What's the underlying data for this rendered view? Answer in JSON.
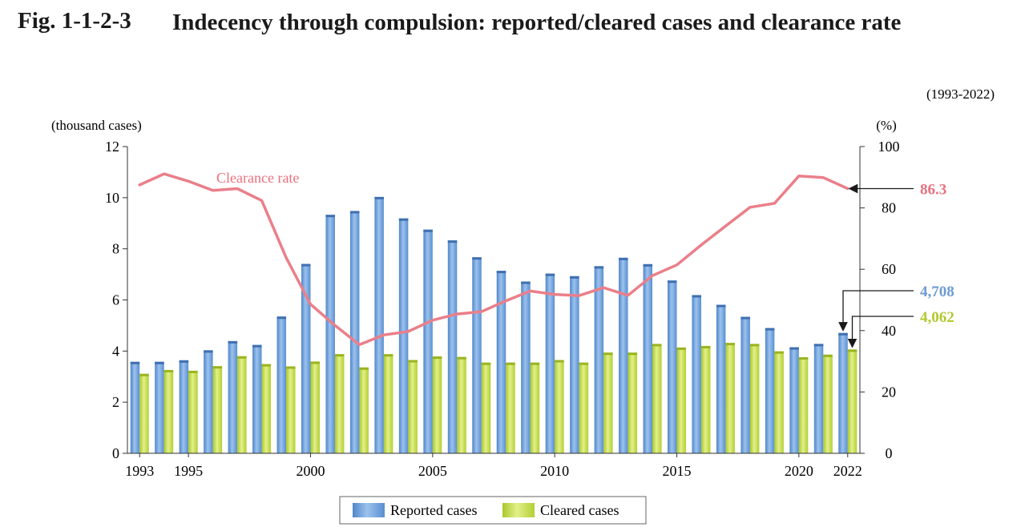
{
  "figure": {
    "number": "Fig. 1-1-2-3",
    "title": "Indecency through compulsion: reported/cleared cases and clearance rate",
    "period": "(1993-2022)"
  },
  "chart_data": {
    "type": "bar+line",
    "xlabel": "",
    "ylabel_left": "(thousand cases)",
    "ylabel_right": "(%)",
    "ylim_left": [
      0,
      12
    ],
    "yticks_left": [
      "0",
      "2",
      "4",
      "6",
      "8",
      "10",
      "12"
    ],
    "ylim_right": [
      0,
      100
    ],
    "yticks_right": [
      "0",
      "20",
      "40",
      "60",
      "80",
      "100"
    ],
    "x": [
      1993,
      1994,
      1995,
      1996,
      1997,
      1998,
      1999,
      2000,
      2001,
      2002,
      2003,
      2004,
      2005,
      2006,
      2007,
      2008,
      2009,
      2010,
      2011,
      2012,
      2013,
      2014,
      2015,
      2016,
      2017,
      2018,
      2019,
      2020,
      2021,
      2022
    ],
    "x_tick_labels": {
      "1993": "1993",
      "1995": "1995",
      "2000": "2000",
      "2005": "2005",
      "2010": "2010",
      "2015": "2015",
      "2020": "2020",
      "2022": "2022"
    },
    "series": [
      {
        "name": "Reported cases",
        "axis": "left",
        "kind": "bar",
        "color": "#6f9fd8",
        "values": [
          3.58,
          3.58,
          3.64,
          4.03,
          4.39,
          4.24,
          5.35,
          7.41,
          9.33,
          9.48,
          10.03,
          9.19,
          8.75,
          8.33,
          7.67,
          7.14,
          6.72,
          7.03,
          6.93,
          7.32,
          7.65,
          7.4,
          6.76,
          6.19,
          5.81,
          5.34,
          4.9,
          4.15,
          4.28,
          4.708
        ]
      },
      {
        "name": "Cleared cases",
        "axis": "left",
        "kind": "bar",
        "color": "#c6dc4a",
        "values": [
          3.11,
          3.26,
          3.23,
          3.41,
          3.8,
          3.49,
          3.4,
          3.59,
          3.88,
          3.36,
          3.88,
          3.65,
          3.79,
          3.77,
          3.55,
          3.55,
          3.55,
          3.65,
          3.55,
          3.94,
          3.94,
          4.28,
          4.14,
          4.2,
          4.32,
          4.28,
          3.99,
          3.76,
          3.86,
          4.062
        ]
      },
      {
        "name": "Clearance rate",
        "axis": "right",
        "kind": "line",
        "color": "#ea7f8a",
        "values": [
          87.5,
          91.1,
          88.7,
          85.7,
          86.3,
          82.4,
          63.8,
          48.6,
          41.7,
          35.4,
          38.6,
          39.7,
          43.4,
          45.4,
          46.2,
          49.7,
          52.9,
          51.8,
          51.4,
          54.0,
          51.5,
          57.9,
          61.4,
          67.9,
          74.1,
          80.2,
          81.5,
          90.4,
          89.9,
          86.3
        ]
      }
    ],
    "line_label": "Clearance rate",
    "legend": {
      "position": "bottom-center",
      "items": [
        "Reported cases",
        "Cleared cases"
      ]
    },
    "callouts": [
      {
        "text": "86.3",
        "target_series": "Clearance rate",
        "color": "#e8717e"
      },
      {
        "text": "4,708",
        "target_series": "Reported cases",
        "color": "#6d9bd1"
      },
      {
        "text": "4,062",
        "target_series": "Cleared cases",
        "color": "#b2c92e"
      }
    ]
  }
}
